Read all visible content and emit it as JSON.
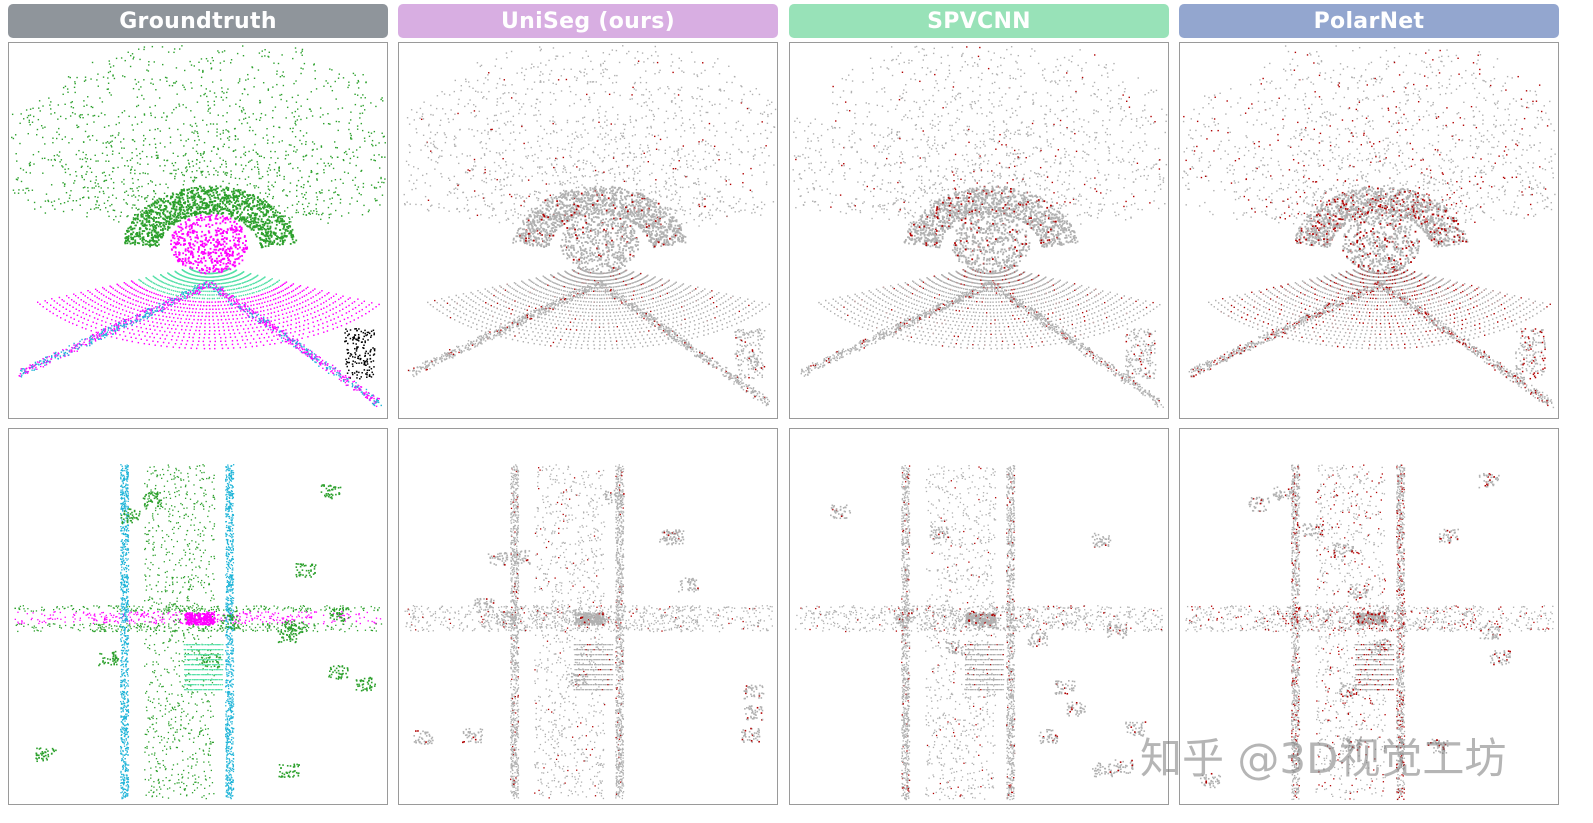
{
  "columns": [
    {
      "title": "Groundtruth",
      "color": "#8f959b"
    },
    {
      "title": "UniSeg (ours)",
      "color": "#d8aee2"
    },
    {
      "title": "SPVCNN",
      "color": "#98e2b8"
    },
    {
      "title": "PolarNet",
      "color": "#93a6cf"
    }
  ],
  "watermark": "知乎 @3D视觉工坊",
  "palette": {
    "vegetation": "#2ca02c",
    "road": "#ff00ff",
    "sidewalk": "#55e0a8",
    "building_pole": "#1fb4d8",
    "other": "#000000",
    "correct": "#b0b0b0",
    "error": "#b00000"
  }
}
